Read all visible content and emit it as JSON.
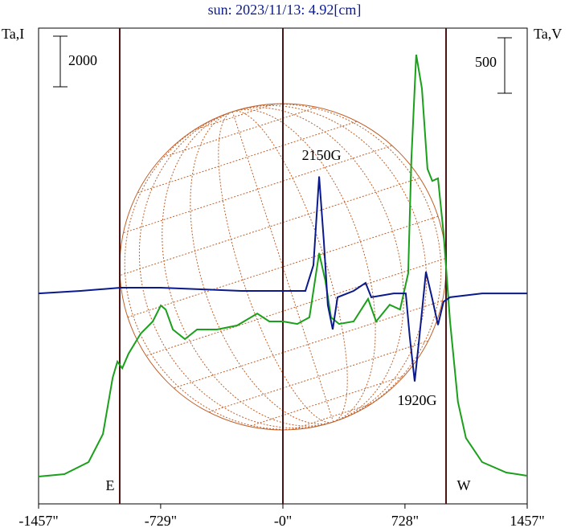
{
  "chart_data": {
    "type": "line",
    "title": "sun: 2023/11/13: 4.92[cm]",
    "xlim": [
      -1457,
      1457
    ],
    "xticks": [
      {
        "value": -1457,
        "label": "-1457\""
      },
      {
        "value": -729,
        "label": "-729\""
      },
      {
        "value": 0,
        "label": "-0\""
      },
      {
        "value": 728,
        "label": "728\""
      },
      {
        "value": 1457,
        "label": "1457\""
      }
    ],
    "ylim": [
      0,
      18800
    ],
    "y2lim": [
      -1914,
      2378
    ],
    "scale_bars": [
      {
        "value": 2000,
        "axis": "y"
      },
      {
        "value": 500,
        "axis": "y2"
      }
    ],
    "vlines": [
      -973,
      0,
      973
    ],
    "limb_labels": [
      "E",
      "W"
    ],
    "annotations": [
      {
        "text": "2150G",
        "x": 216
      },
      {
        "text": "1920G",
        "x": 786
      }
    ],
    "series": [
      {
        "name": "Ta,I",
        "color": "#1aa01a",
        "axis": "y",
        "x": [
          -1457,
          -1303,
          -1159,
          -1073,
          -1015,
          -987,
          -958,
          -920,
          -848,
          -776,
          -728,
          -699,
          -656,
          -584,
          -512,
          -393,
          -273,
          -153,
          -81,
          0,
          86,
          158,
          216,
          254,
          287,
          335,
          422,
          508,
          556,
          637,
          699,
          747,
          766,
          795,
          829,
          862,
          891,
          925,
          958,
          997,
          1044,
          1092,
          1188,
          1332,
          1457
        ],
        "values": [
          1080,
          1175,
          1650,
          2760,
          4985,
          5620,
          5360,
          5940,
          6730,
          7210,
          7840,
          7680,
          6890,
          6510,
          6890,
          6890,
          7050,
          7520,
          7210,
          7210,
          7110,
          7370,
          9910,
          8790,
          7370,
          7110,
          7210,
          8100,
          7210,
          7870,
          7680,
          9110,
          13560,
          17750,
          16410,
          13240,
          12760,
          12860,
          10700,
          7210,
          4030,
          2600,
          1650,
          1240,
          1110
        ]
      },
      {
        "name": "Ta,V",
        "color": "#0a1a8c",
        "axis": "y2",
        "x": [
          -1457,
          -1207,
          -968,
          -728,
          -489,
          -249,
          0,
          134,
          182,
          216,
          244,
          268,
          297,
          326,
          422,
          493,
          527,
          661,
          733,
          757,
          786,
          814,
          853,
          891,
          925,
          958,
          997,
          1188,
          1457
        ],
        "values": [
          -15,
          7,
          36,
          36,
          22,
          7,
          7,
          7,
          240,
          1040,
          460,
          -120,
          -340,
          -50,
          7,
          80,
          -50,
          -15,
          -15,
          -410,
          -810,
          -410,
          180,
          -65,
          -300,
          -90,
          -50,
          -15,
          -15
        ]
      }
    ]
  }
}
